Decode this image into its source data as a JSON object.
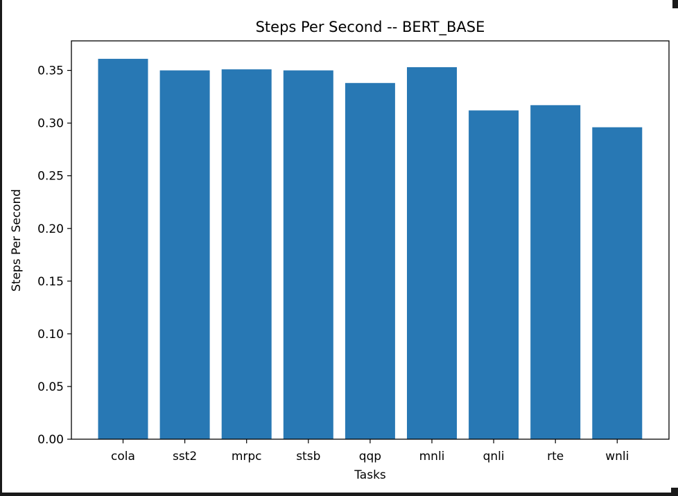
{
  "chart_data": {
    "type": "bar",
    "title": "Steps Per Second -- BERT_BASE",
    "xlabel": "Tasks",
    "ylabel": "Steps Per Second",
    "categories": [
      "cola",
      "sst2",
      "mrpc",
      "stsb",
      "qqp",
      "mnli",
      "qnli",
      "rte",
      "wnli"
    ],
    "values": [
      0.361,
      0.35,
      0.351,
      0.35,
      0.338,
      0.353,
      0.312,
      0.317,
      0.296
    ],
    "ylim": [
      0,
      0.378
    ],
    "yticks": [
      0.0,
      0.05,
      0.1,
      0.15,
      0.2,
      0.25,
      0.3,
      0.35
    ],
    "ytick_labels": [
      "0.00",
      "0.05",
      "0.10",
      "0.15",
      "0.20",
      "0.25",
      "0.30",
      "0.35"
    ],
    "grid": false,
    "bar_color": "#2878b4"
  }
}
